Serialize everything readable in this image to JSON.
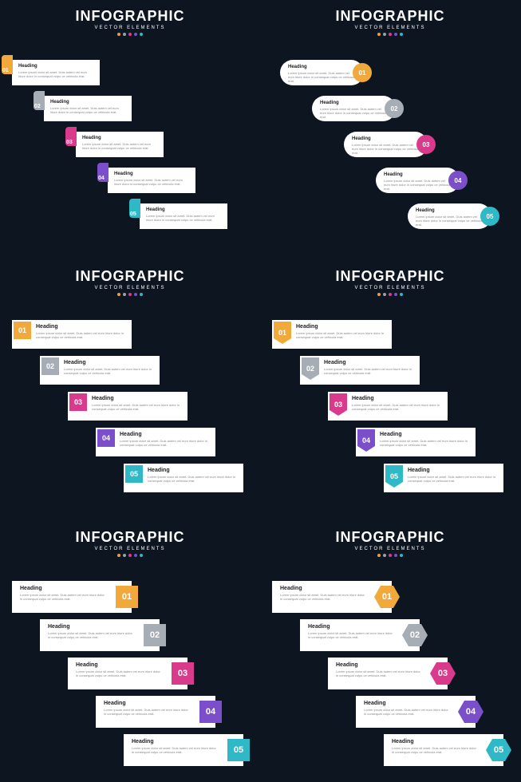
{
  "title": "INFOGRAPHIC",
  "subtitle": "VECTOR ELEMENTS",
  "dot_colors": [
    "#e9a03a",
    "#9aa0a6",
    "#d93a8c",
    "#7a4fc9",
    "#2fb8c5"
  ],
  "step_colors": [
    "#f2a93c",
    "#a6adb5",
    "#d93a8c",
    "#7a4fc9",
    "#2fb8c5"
  ],
  "heading": "Heading",
  "body": "Lorem ipsum dolor sit amet. Duis autem vel eum iriure dolor in consequat vulpu ce vehicula erat.",
  "numbers": [
    "01",
    "02",
    "03",
    "04",
    "05"
  ]
}
